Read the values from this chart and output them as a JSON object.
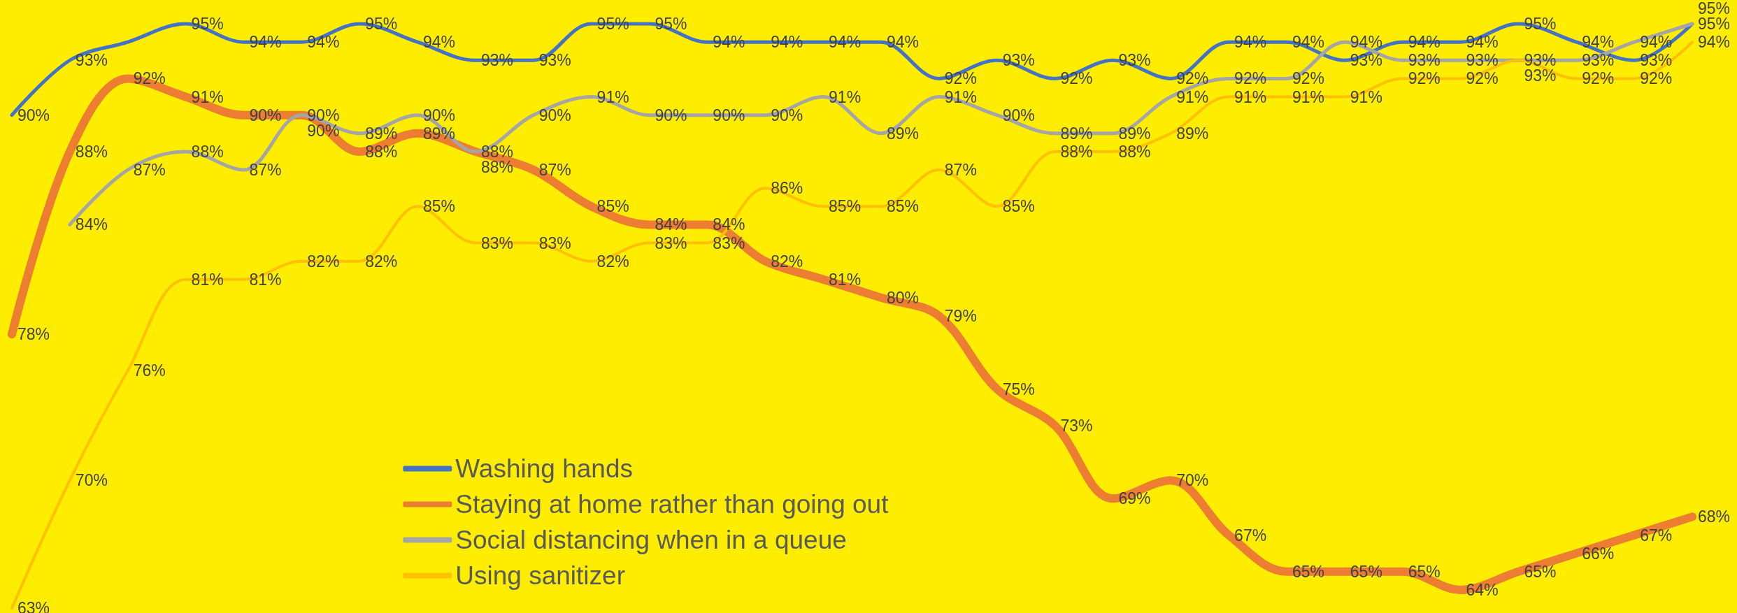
{
  "chart_data": {
    "type": "line",
    "categories": [
      null,
      null,
      null,
      null,
      null,
      null,
      null,
      null,
      null,
      null,
      null,
      null,
      null,
      null,
      null,
      null,
      null,
      null,
      null,
      null,
      null,
      null,
      null,
      null,
      null,
      null,
      null,
      null,
      null,
      null
    ],
    "series": [
      {
        "name": "Washing hands",
        "color": "#4472c4",
        "values": [
          90,
          93,
          94,
          95,
          94,
          94,
          95,
          94,
          93,
          93,
          95,
          95,
          94,
          94,
          94,
          94,
          92,
          93,
          92,
          93,
          92,
          94,
          94,
          93,
          94,
          94,
          95,
          94,
          93,
          95
        ],
        "value_labels": [
          "90%",
          "93%",
          null,
          "95%",
          "94%",
          "94%",
          "95%",
          "94%",
          "93%",
          "93%",
          "95%",
          "95%",
          "94%",
          "94%",
          "94%",
          "94%",
          "92%",
          "93%",
          "92%",
          "93%",
          "92%",
          "94%",
          "94%",
          "93%",
          "94%",
          "94%",
          "95%",
          "94%",
          "93%",
          "95%"
        ]
      },
      {
        "name": "Staying at home rather than going out",
        "color": "#ed7d31",
        "values": [
          78,
          88,
          92,
          91,
          90,
          90,
          88,
          89,
          88,
          87,
          85,
          84,
          84,
          82,
          81,
          80,
          79,
          75,
          73,
          69,
          70,
          67,
          65,
          65,
          65,
          64,
          65,
          66,
          67,
          68
        ],
        "value_labels": [
          "78%",
          "88%",
          "92%",
          "91%",
          "90%",
          "90%",
          "88%",
          "89%",
          "88%",
          "87%",
          "85%",
          "84%",
          "84%",
          "82%",
          "81%",
          "80%",
          "79%",
          "75%",
          "73%",
          "69%",
          "70%",
          "67%",
          "65%",
          "65%",
          "65%",
          "64%",
          "65%",
          "66%",
          "67%",
          "68%"
        ]
      },
      {
        "name": "Social distancing when in a queue",
        "color": "#a5a5a5",
        "values": [
          null,
          84,
          87,
          88,
          87,
          90,
          89,
          90,
          88,
          90,
          91,
          90,
          90,
          90,
          91,
          89,
          91,
          90,
          89,
          89,
          91,
          92,
          92,
          94,
          93,
          93,
          93,
          93,
          94,
          95
        ],
        "value_labels": [
          null,
          "84%",
          "87%",
          "88%",
          "87%",
          "90%",
          "89%",
          "90%",
          "88%",
          "90%",
          "91%",
          "90%",
          "90%",
          "90%",
          "91%",
          "89%",
          "91%",
          "90%",
          "89%",
          "89%",
          "91%",
          "92%",
          "92%",
          "94%",
          "93%",
          "93%",
          "93%",
          "93%",
          "94%",
          "95%"
        ]
      },
      {
        "name": "Using sanitizer",
        "color": "#ffc000",
        "values": [
          63,
          70,
          76,
          81,
          81,
          82,
          82,
          85,
          83,
          83,
          82,
          83,
          83,
          86,
          85,
          85,
          87,
          85,
          88,
          88,
          89,
          91,
          91,
          91,
          92,
          92,
          93,
          92,
          92,
          94
        ],
        "value_labels": [
          "63%",
          "70%",
          "76%",
          "81%",
          "81%",
          "82%",
          "82%",
          "85%",
          "83%",
          "83%",
          "82%",
          "83%",
          "83%",
          "86%",
          "85%",
          "85%",
          "87%",
          "85%",
          "88%",
          "88%",
          "89%",
          "91%",
          "91%",
          "91%",
          "92%",
          "92%",
          "93%",
          "92%",
          "92%",
          "94%"
        ]
      }
    ],
    "legend": "bottom left",
    "marker": "none",
    "line_style": "solid",
    "grid": false,
    "tick_labels": false
  }
}
